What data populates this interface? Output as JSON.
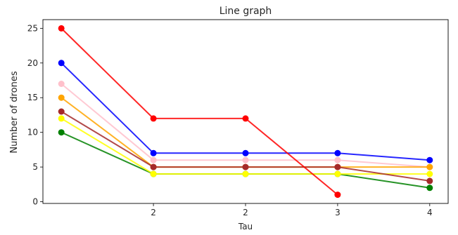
{
  "chart_data": {
    "type": "line",
    "title": "Line graph",
    "xlabel": "Tau",
    "ylabel": "Number of drones",
    "x_positions": [
      1,
      2,
      3,
      4,
      5
    ],
    "x_tick_labels": [
      "",
      "2",
      "2",
      "3",
      "4"
    ],
    "y_ticks": [
      0,
      5,
      10,
      15,
      20,
      25
    ],
    "xlim": [
      0.8,
      5.2
    ],
    "ylim": [
      -0.25,
      26.25
    ],
    "grid": false,
    "legend": "none",
    "series": [
      {
        "color": "#008000",
        "values": [
          10,
          4,
          4,
          4,
          2
        ]
      },
      {
        "color": "#ffff00",
        "values": [
          12,
          4,
          4,
          4,
          4
        ]
      },
      {
        "color": "#ffc0cb",
        "values": [
          17,
          6,
          6,
          6,
          5
        ]
      },
      {
        "color": "#ffa500",
        "values": [
          15,
          5,
          5,
          5,
          5
        ]
      },
      {
        "color": "#a52a2a",
        "values": [
          13,
          5,
          5,
          5,
          3
        ]
      },
      {
        "color": "#0000ff",
        "values": [
          20,
          7,
          7,
          7,
          6
        ]
      },
      {
        "color": "#ff0000",
        "values": [
          25,
          12,
          12,
          1,
          null
        ]
      }
    ]
  }
}
